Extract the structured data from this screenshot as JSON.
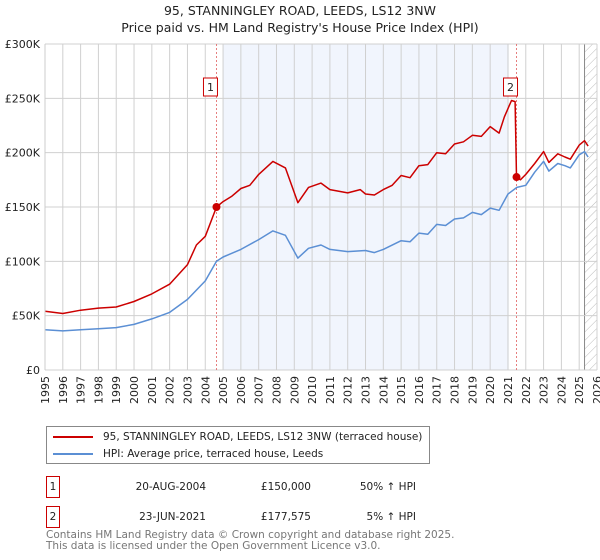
{
  "chart_data": {
    "type": "line",
    "title": "95, STANNINGLEY ROAD, LEEDS, LS12 3NW",
    "subtitle": "Price paid vs. HM Land Registry's House Price Index (HPI)",
    "xlim": [
      1995,
      2026
    ],
    "ylim": [
      0,
      300000
    ],
    "x_ticks": [
      "1995",
      "1996",
      "1997",
      "1998",
      "1999",
      "2000",
      "2001",
      "2002",
      "2003",
      "2004",
      "2005",
      "2006",
      "2007",
      "2008",
      "2009",
      "2010",
      "2011",
      "2012",
      "2013",
      "2014",
      "2015",
      "2016",
      "2017",
      "2018",
      "2019",
      "2020",
      "2021",
      "2022",
      "2023",
      "2024",
      "2025",
      "2026"
    ],
    "y_ticks": [
      {
        "v": 0,
        "label": "£0"
      },
      {
        "v": 50000,
        "label": "£50K"
      },
      {
        "v": 100000,
        "label": "£100K"
      },
      {
        "v": 150000,
        "label": "£150K"
      },
      {
        "v": 200000,
        "label": "£200K"
      },
      {
        "v": 250000,
        "label": "£250K"
      },
      {
        "v": 300000,
        "label": "£300K"
      }
    ],
    "grid": true,
    "shaded_range": [
      2005.0,
      2021.05
    ],
    "forecast_hatch_from": 2025.3,
    "series": [
      {
        "name": "95, STANNINGLEY ROAD, LEEDS, LS12 3NW (terraced house)",
        "color": "#cc0000",
        "x": [
          1995,
          1996,
          1997,
          1998,
          1999,
          2000,
          2001,
          2002,
          2003,
          2003.5,
          2004,
          2004.63,
          2005,
          2005.5,
          2006,
          2006.5,
          2007,
          2007.8,
          2008.5,
          2009.2,
          2009.8,
          2010.5,
          2011,
          2012,
          2012.7,
          2013,
          2013.5,
          2014,
          2014.5,
          2015,
          2015.5,
          2016,
          2016.5,
          2017,
          2017.5,
          2018,
          2018.5,
          2019,
          2019.5,
          2020,
          2020.5,
          2020.8,
          2021.2,
          2021.4,
          2021.48,
          2021.7,
          2022,
          2022.5,
          2023,
          2023.3,
          2023.8,
          2024.2,
          2024.5,
          2025,
          2025.3,
          2025.5
        ],
        "y": [
          54000,
          52000,
          55000,
          57000,
          58000,
          63000,
          70000,
          79000,
          97000,
          115000,
          123000,
          150000,
          155000,
          160000,
          167000,
          170000,
          180000,
          192000,
          186000,
          154000,
          168000,
          172000,
          166000,
          163000,
          166000,
          162000,
          161000,
          166000,
          170000,
          179000,
          177000,
          188000,
          189000,
          200000,
          199000,
          208000,
          210000,
          216000,
          215000,
          224000,
          218000,
          233000,
          248000,
          247000,
          177575,
          175000,
          180000,
          190000,
          201000,
          191000,
          199000,
          196000,
          194000,
          207000,
          211000,
          206000
        ]
      },
      {
        "name": "HPI: Average price, terraced house, Leeds",
        "color": "#5b8fd4",
        "x": [
          1995,
          1996,
          1997,
          1998,
          1999,
          2000,
          2001,
          2002,
          2003,
          2004,
          2004.63,
          2005,
          2006,
          2007,
          2007.8,
          2008.5,
          2009.2,
          2009.8,
          2010.5,
          2011,
          2012,
          2013,
          2013.5,
          2014,
          2015,
          2015.5,
          2016,
          2016.5,
          2017,
          2017.5,
          2018,
          2018.5,
          2019,
          2019.5,
          2020,
          2020.5,
          2021,
          2021.5,
          2022,
          2022.5,
          2023,
          2023.3,
          2023.8,
          2024.2,
          2024.5,
          2025,
          2025.3,
          2025.5
        ],
        "y": [
          37000,
          36000,
          37000,
          38000,
          39000,
          42000,
          47000,
          53000,
          65000,
          82000,
          100000,
          104000,
          111000,
          120000,
          128000,
          124000,
          103000,
          112000,
          115000,
          111000,
          109000,
          110000,
          108000,
          111000,
          119000,
          118000,
          126000,
          125000,
          134000,
          133000,
          139000,
          140000,
          145000,
          143000,
          149000,
          147000,
          162000,
          168000,
          170000,
          182000,
          192000,
          183000,
          190000,
          188000,
          186000,
          198000,
          201000,
          196000
        ]
      }
    ],
    "annotations": [
      {
        "label": "1",
        "x": 2004.63,
        "y": 150000
      },
      {
        "label": "2",
        "x": 2021.48,
        "y": 177575
      }
    ]
  },
  "legend": {
    "items": [
      {
        "label": "95, STANNINGLEY ROAD, LEEDS, LS12 3NW (terraced house)",
        "color": "#cc0000"
      },
      {
        "label": "HPI: Average price, terraced house, Leeds",
        "color": "#5b8fd4"
      }
    ]
  },
  "transactions": [
    {
      "num": "1",
      "date": "20-AUG-2004",
      "price": "£150,000",
      "hpi": "50% ↑ HPI"
    },
    {
      "num": "2",
      "date": "23-JUN-2021",
      "price": "£177,575",
      "hpi": "5% ↑ HPI"
    }
  ],
  "footer": {
    "line1": "Contains HM Land Registry data © Crown copyright and database right 2025.",
    "line2": "This data is licensed under the Open Government Licence v3.0."
  }
}
